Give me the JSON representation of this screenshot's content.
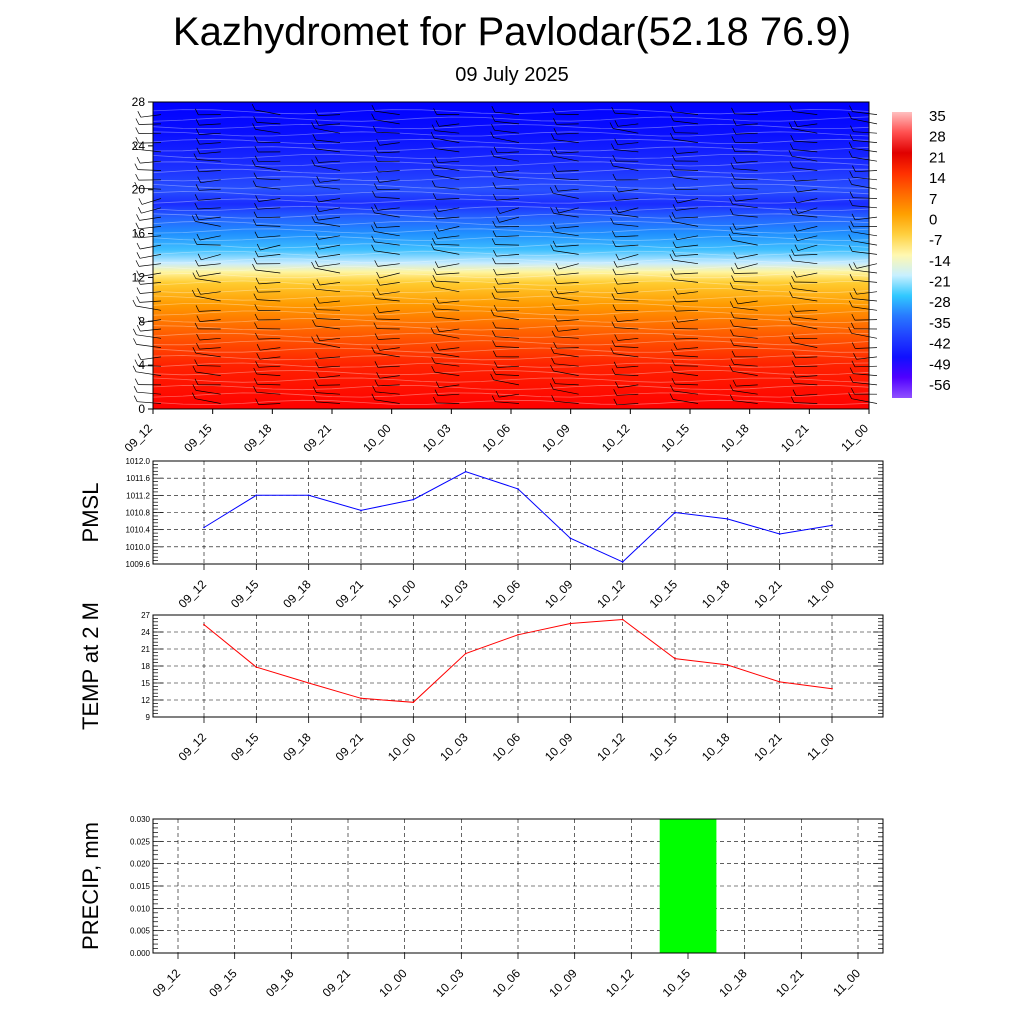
{
  "header": {
    "title": "Kazhydromet for Pavlodar(52.18 76.9)",
    "date": "09 July 2025"
  },
  "colors": {
    "pmsl_line": "#0000ff",
    "temp_line": "#ff0000",
    "precip_bar": "#00ff00",
    "barb": "#000000"
  },
  "chart_data": [
    {
      "type": "heatmap",
      "name": "cross-section",
      "x": [
        "09_12",
        "09_15",
        "09_18",
        "09_21",
        "10_00",
        "10_03",
        "10_06",
        "10_09",
        "10_12",
        "10_15",
        "10_18",
        "10_21",
        "11_00"
      ],
      "ylim": [
        0,
        28
      ],
      "yticks": [
        0,
        4,
        8,
        12,
        16,
        20,
        24,
        28
      ],
      "colorbar": {
        "labels": [
          35,
          28,
          21,
          14,
          7,
          0,
          -7,
          -14,
          -21,
          -28,
          -35,
          -42,
          -49,
          -56
        ],
        "colors": [
          "#ffc0c0",
          "#ff5050",
          "#e00000",
          "#ff3000",
          "#ff6a00",
          "#ffa000",
          "#ffd040",
          "#fff8b0",
          "#c8f0ff",
          "#30c8ff",
          "#2878ff",
          "#2040ff",
          "#1010ff",
          "#5000ff",
          "#9050ff"
        ]
      },
      "levels": [
        {
          "h": 0,
          "color": "#ff0000"
        },
        {
          "h": 4,
          "color": "#ff2200"
        },
        {
          "h": 7,
          "color": "#ff6000"
        },
        {
          "h": 9.5,
          "color": "#ff9a00"
        },
        {
          "h": 11.5,
          "color": "#ffcc30"
        },
        {
          "h": 12.5,
          "color": "#fff5a0"
        },
        {
          "h": 13.3,
          "color": "#c8ecff"
        },
        {
          "h": 14.5,
          "color": "#40c0ff"
        },
        {
          "h": 16,
          "color": "#2090ff"
        },
        {
          "h": 17.5,
          "color": "#2460ff"
        },
        {
          "h": 18.7,
          "color": "#1a2cff"
        },
        {
          "h": 20,
          "color": "#2850ff"
        },
        {
          "h": 22,
          "color": "#1c30ff"
        },
        {
          "h": 25,
          "color": "#0a10ff"
        },
        {
          "h": 28,
          "color": "#0000ff"
        }
      ]
    },
    {
      "type": "line",
      "name": "PMSL",
      "x": [
        "09_12",
        "09_15",
        "09_18",
        "09_21",
        "10_00",
        "10_03",
        "10_06",
        "10_09",
        "10_12",
        "10_15",
        "10_18",
        "10_21",
        "11_00"
      ],
      "values": [
        1010.45,
        1011.2,
        1011.2,
        1010.85,
        1011.1,
        1011.75,
        1011.35,
        1010.2,
        1009.65,
        1010.8,
        1010.65,
        1010.3,
        1010.5
      ],
      "ylabel": "PMSL",
      "ylim": [
        1009.6,
        1012.0
      ],
      "yticks": [
        "1009.6",
        "1010.0",
        "1010.4",
        "1010.8",
        "1011.2",
        "1011.6",
        "1012.0"
      ]
    },
    {
      "type": "line",
      "name": "TEMP",
      "x": [
        "09_12",
        "09_15",
        "09_18",
        "09_21",
        "10_00",
        "10_03",
        "10_06",
        "10_09",
        "10_12",
        "10_15",
        "10_18",
        "10_21",
        "11_00"
      ],
      "values": [
        25.3,
        17.8,
        15.0,
        12.3,
        11.6,
        20.2,
        23.5,
        25.5,
        26.2,
        19.3,
        18.2,
        15.2,
        14.0
      ],
      "ylabel": "TEMP at 2 M",
      "ylim": [
        9,
        27
      ],
      "yticks": [
        "9",
        "12",
        "15",
        "18",
        "21",
        "24",
        "27"
      ]
    },
    {
      "type": "bar",
      "name": "PRECIP",
      "x": [
        "09_12",
        "09_15",
        "09_18",
        "09_21",
        "10_00",
        "10_03",
        "10_06",
        "10_09",
        "10_12",
        "10_15",
        "10_18",
        "10_21",
        "11_00"
      ],
      "values": [
        0,
        0,
        0,
        0,
        0,
        0,
        0,
        0,
        0,
        0.03,
        0,
        0,
        0
      ],
      "ylabel": "PRECIP, mm",
      "ylim": [
        0,
        0.03
      ],
      "yticks": [
        "0.000",
        "0.005",
        "0.010",
        "0.015",
        "0.020",
        "0.025",
        "0.030"
      ]
    }
  ]
}
